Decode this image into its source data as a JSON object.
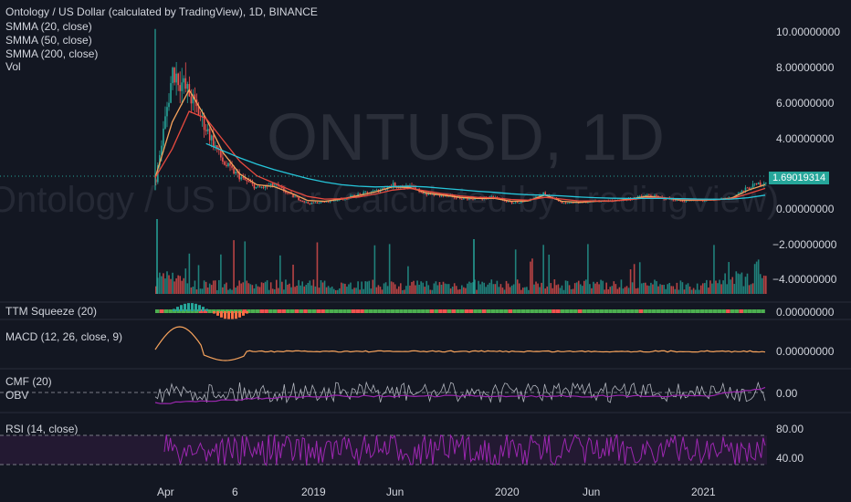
{
  "header": {
    "title": "Ontology / US Dollar (calculated by TradingView), 1D, BINANCE",
    "indicators": [
      "SMMA (20, close)",
      "SMMA (50, close)",
      "SMMA (200, close)",
      "Vol"
    ]
  },
  "watermark": {
    "symbol": "ONTUSD, 1D",
    "name": "Ontology / US Dollar (calculated by TradingView)"
  },
  "price_axis": {
    "ticks": [
      "10.00000000",
      "8.00000000",
      "6.00000000",
      "4.00000000",
      "0.00000000",
      "−2.00000000",
      "−4.00000000"
    ],
    "last_price": "1.69019314"
  },
  "panes": {
    "ttm": {
      "label": "TTM Squeeze (20)",
      "tick": "0.00000000"
    },
    "macd": {
      "label": "MACD (12, 26, close, 9)",
      "tick": "0.00000000"
    },
    "cmf": {
      "label": "CMF (20)",
      "label2": "OBV",
      "tick": "0.00"
    },
    "rsi": {
      "label": "RSI (14, close)",
      "ticks": [
        "80.00",
        "40.00"
      ]
    }
  },
  "time_axis": [
    "Apr",
    "6",
    "2019",
    "Jun",
    "2020",
    "Jun",
    "2021"
  ],
  "colors": {
    "background": "#131722",
    "up": "#26a69a",
    "down": "#ef5350",
    "smma20": "#f7a35c",
    "smma50": "#e84a3f",
    "smma200": "#26c6da",
    "rsi": "#9c27b0",
    "squeeze_on": "#4caf50",
    "squeeze_off": "#ef5350"
  },
  "chart_data": {
    "type": "line",
    "symbol": "ONTUSD",
    "interval": "1D",
    "exchange": "BINANCE",
    "ylim": [
      -5,
      11
    ],
    "x": [
      "2018-03",
      "2018-04",
      "2018-05",
      "2018-06",
      "2018-07",
      "2018-08",
      "2018-09",
      "2018-10",
      "2018-11",
      "2018-12",
      "2019-01",
      "2019-02",
      "2019-03",
      "2019-04",
      "2019-05",
      "2019-06",
      "2019-07",
      "2019-08",
      "2019-09",
      "2019-10",
      "2019-11",
      "2019-12",
      "2020-01",
      "2020-02",
      "2020-03",
      "2020-04",
      "2020-05",
      "2020-06",
      "2020-07",
      "2020-08",
      "2020-09",
      "2020-10",
      "2020-11",
      "2020-12",
      "2021-01",
      "2021-02",
      "2021-03"
    ],
    "series": [
      {
        "name": "Close",
        "values": [
          1.8,
          7.9,
          6.5,
          4.6,
          2.7,
          1.9,
          1.3,
          1.5,
          0.9,
          0.45,
          0.55,
          0.72,
          0.95,
          1.15,
          1.5,
          1.35,
          0.98,
          0.9,
          0.75,
          0.72,
          0.8,
          0.48,
          0.58,
          1.05,
          0.45,
          0.5,
          0.6,
          0.6,
          0.72,
          0.9,
          0.75,
          0.6,
          0.62,
          0.65,
          0.8,
          1.35,
          1.69
        ]
      },
      {
        "name": "SMMA (20, close)",
        "values": [
          1.9,
          5.0,
          6.8,
          5.2,
          3.3,
          2.1,
          1.5,
          1.4,
          1.05,
          0.62,
          0.58,
          0.7,
          0.9,
          1.1,
          1.38,
          1.35,
          1.05,
          0.92,
          0.8,
          0.74,
          0.75,
          0.58,
          0.6,
          0.92,
          0.58,
          0.52,
          0.58,
          0.6,
          0.7,
          0.85,
          0.78,
          0.65,
          0.63,
          0.65,
          0.75,
          1.2,
          1.5
        ]
      },
      {
        "name": "SMMA (50, close)",
        "values": [
          1.9,
          3.5,
          5.6,
          5.2,
          4.0,
          2.8,
          2.0,
          1.6,
          1.2,
          0.85,
          0.7,
          0.72,
          0.82,
          0.98,
          1.2,
          1.3,
          1.15,
          1.0,
          0.88,
          0.8,
          0.78,
          0.68,
          0.64,
          0.8,
          0.7,
          0.6,
          0.6,
          0.6,
          0.66,
          0.78,
          0.78,
          0.7,
          0.66,
          0.66,
          0.72,
          1.0,
          1.3
        ]
      },
      {
        "name": "SMMA (200, close)",
        "values": [
          null,
          null,
          null,
          3.8,
          3.4,
          3.0,
          2.65,
          2.35,
          2.1,
          1.85,
          1.65,
          1.5,
          1.42,
          1.38,
          1.4,
          1.42,
          1.38,
          1.3,
          1.22,
          1.14,
          1.08,
          1.0,
          0.94,
          0.92,
          0.88,
          0.82,
          0.78,
          0.75,
          0.74,
          0.74,
          0.74,
          0.72,
          0.7,
          0.69,
          0.7,
          0.78,
          0.92
        ]
      }
    ]
  }
}
